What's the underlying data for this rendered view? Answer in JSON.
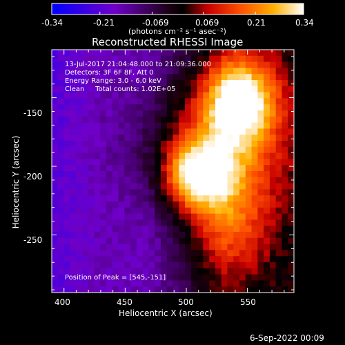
{
  "colorbar": {
    "ticks": [
      "-0.34",
      "-0.21",
      "-0.069",
      "0.069",
      "0.21",
      "0.34"
    ],
    "tick_values": [
      -0.34,
      -0.21,
      -0.069,
      0.069,
      0.21,
      0.34
    ],
    "range": [
      -0.34,
      0.34
    ],
    "units": "(photons cm⁻² s⁻¹ asec⁻²)"
  },
  "chart_data": {
    "type": "heatmap",
    "title": "Reconstructed RHESSI Image",
    "xlabel": "Heliocentric X (arcsec)",
    "ylabel": "Heliocentric Y (arcsec)",
    "xlim": [
      390,
      588
    ],
    "ylim": [
      -292,
      -115
    ],
    "xticks": [
      "400",
      "450",
      "500",
      "550"
    ],
    "xtick_values": [
      400,
      450,
      500,
      550
    ],
    "yticks": [
      "-150",
      "-200",
      "-250"
    ],
    "ytick_values": [
      -150,
      -200,
      -250
    ],
    "colormap": "rainbow blue-purple-black-red-orange-yellow-white",
    "sources": [
      {
        "x": 545,
        "y": -151,
        "peak": 0.34,
        "sx": 20,
        "sy": 22
      },
      {
        "x": 508,
        "y": -207,
        "peak": 0.3,
        "sx": 18,
        "sy": 16
      },
      {
        "x": 520,
        "y": -185,
        "peak": 0.2,
        "sx": 40,
        "sy": 32
      },
      {
        "x": 535,
        "y": -240,
        "peak": 0.16,
        "sx": 24,
        "sy": 30
      }
    ],
    "annotations": [
      "13-Jul-2017 21:04:48.000 to 21:09:36.000",
      "Detectors: 3F 6F 8F, Att 0",
      "Energy Range: 3.0 - 6.0 keV",
      "Clean     Total counts: 1.02E+05"
    ],
    "peak_label": "Position of Peak = [545,-151]"
  },
  "footer_date": "6-Sep-2022 00:09"
}
